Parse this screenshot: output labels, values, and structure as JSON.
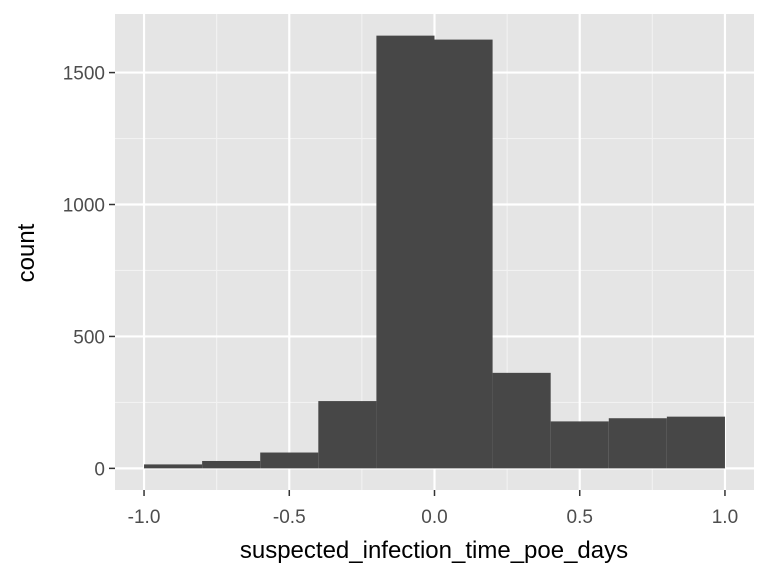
{
  "chart_data": {
    "type": "bar",
    "title": "",
    "xlabel": "suspected_infection_time_poe_days",
    "ylabel": "count",
    "bins": [
      {
        "x0": -1.0,
        "x1": -0.8,
        "count": 15
      },
      {
        "x0": -0.8,
        "x1": -0.6,
        "count": 28
      },
      {
        "x0": -0.6,
        "x1": -0.4,
        "count": 60
      },
      {
        "x0": -0.4,
        "x1": -0.2,
        "count": 255
      },
      {
        "x0": -0.2,
        "x1": 0.0,
        "count": 1640
      },
      {
        "x0": 0.0,
        "x1": 0.2,
        "count": 1625
      },
      {
        "x0": 0.2,
        "x1": 0.4,
        "count": 362
      },
      {
        "x0": 0.4,
        "x1": 0.6,
        "count": 178
      },
      {
        "x0": 0.6,
        "x1": 0.8,
        "count": 190
      },
      {
        "x0": 0.8,
        "x1": 1.0,
        "count": 196
      }
    ],
    "xlim": [
      -1.1,
      1.1
    ],
    "ylim": [
      -82,
      1722
    ],
    "xticks": [
      -1.0,
      -0.5,
      0.0,
      0.5,
      1.0
    ],
    "xtick_labels": [
      "-1.0",
      "-0.5",
      "0.0",
      "0.5",
      "1.0"
    ],
    "yticks": [
      0,
      500,
      1000,
      1500
    ],
    "ytick_labels": [
      "0",
      "500",
      "1000",
      "1500"
    ],
    "grid": true,
    "colors": {
      "panel_background": "#e5e5e5",
      "grid_major": "#ffffff",
      "grid_minor": "#f2f2f2",
      "bar_fill": "#474747",
      "tick_text": "#4d4d4d",
      "axis_title_text": "#000000"
    }
  }
}
